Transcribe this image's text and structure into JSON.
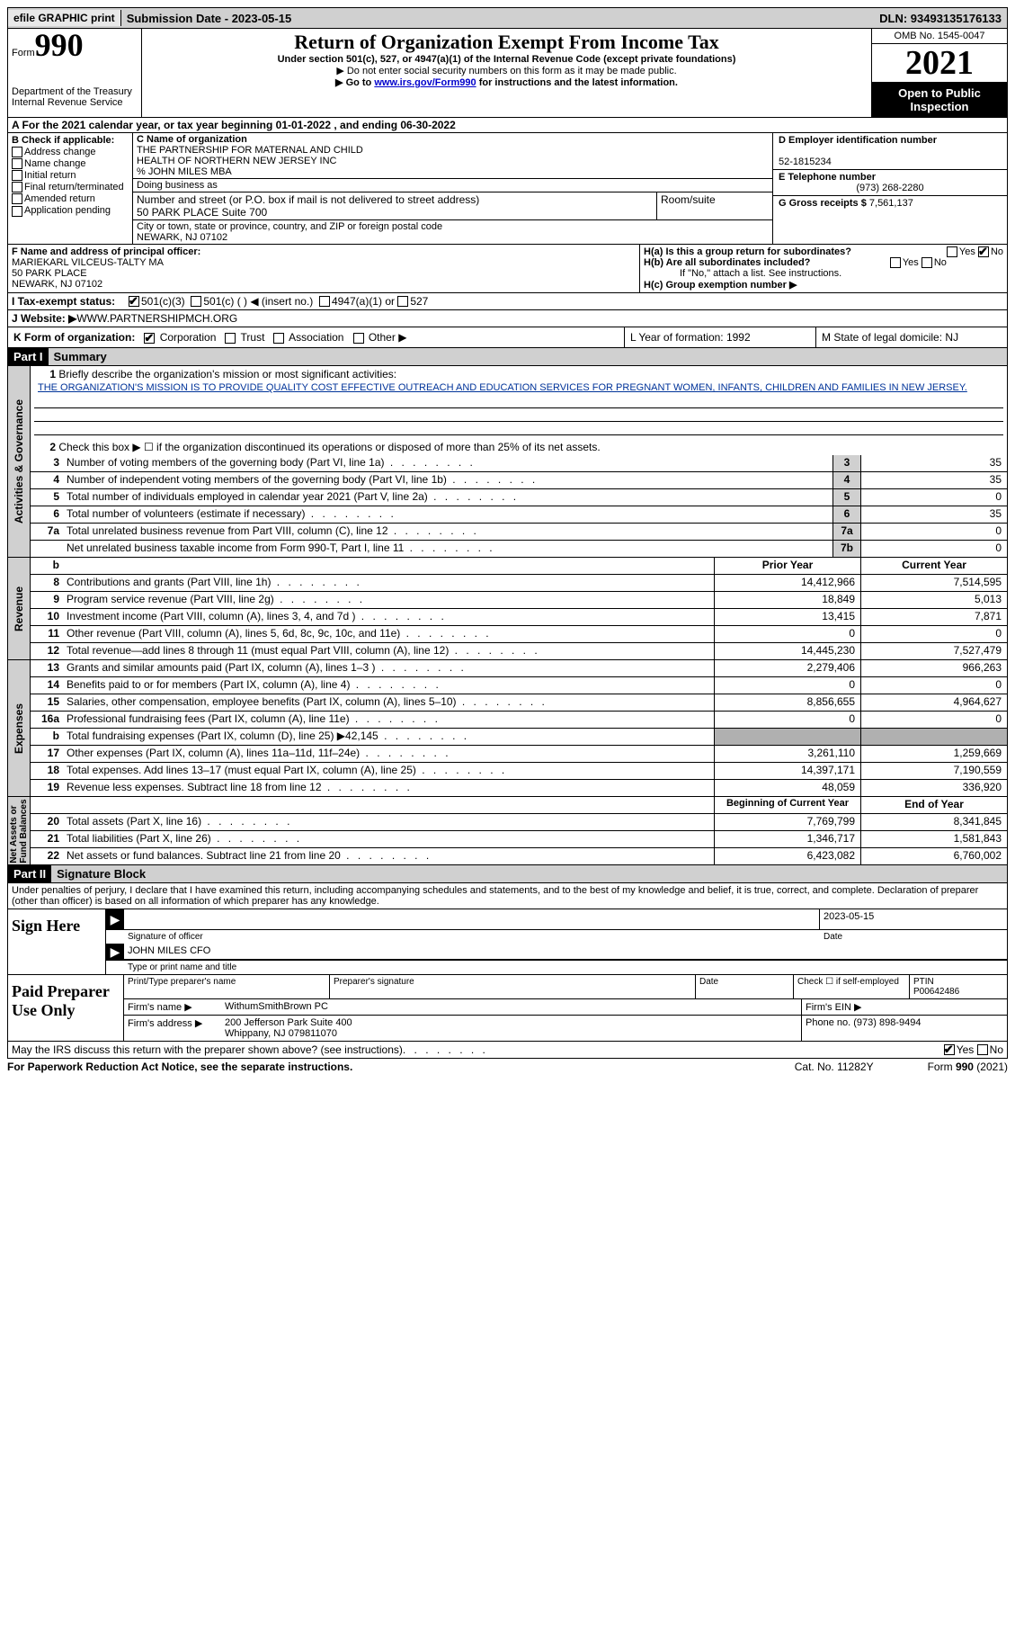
{
  "topbar": {
    "efile": "efile GRAPHIC print",
    "sub_date": "Submission Date - 2023-05-15",
    "dln": "DLN: 93493135176133"
  },
  "header": {
    "form_label": "Form",
    "form_num": "990",
    "dept": "Department of the Treasury",
    "irs": "Internal Revenue Service",
    "title": "Return of Organization Exempt From Income Tax",
    "sub1": "Under section 501(c), 527, or 4947(a)(1) of the Internal Revenue Code (except private foundations)",
    "sub2": "▶ Do not enter social security numbers on this form as it may be made public.",
    "sub3_pre": "▶ Go to ",
    "sub3_link": "www.irs.gov/Form990",
    "sub3_post": " for instructions and the latest information.",
    "omb": "OMB No. 1545-0047",
    "year": "2021",
    "open": "Open to Public Inspection"
  },
  "a": "A For the 2021 calendar year, or tax year beginning 01-01-2022    , and ending 06-30-2022",
  "b": {
    "hdr": "B Check if applicable:",
    "items": [
      "Address change",
      "Name change",
      "Initial return",
      "Final return/terminated",
      "Amended return",
      "Application pending"
    ]
  },
  "c": {
    "label": "C Name of organization",
    "name1": "THE PARTNERSHIP FOR MATERNAL AND CHILD",
    "name2": "HEALTH OF NORTHERN NEW JERSEY INC",
    "care": "% JOHN MILES MBA",
    "dba_label": "Doing business as",
    "addr_label": "Number and street (or P.O. box if mail is not delivered to street address)",
    "room_label": "Room/suite",
    "addr": "50 PARK PLACE Suite 700",
    "city_label": "City or town, state or province, country, and ZIP or foreign postal code",
    "city": "NEWARK, NJ  07102"
  },
  "d": {
    "ein_label": "D Employer identification number",
    "ein": "52-1815234",
    "tel_label": "E Telephone number",
    "tel": "(973) 268-2280",
    "gross_label": "G Gross receipts $",
    "gross": "7,561,137"
  },
  "f": {
    "label": "F  Name and address of principal officer:",
    "name": "MARIEKARL VILCEUS-TALTY MA",
    "addr1": "50 PARK PLACE",
    "addr2": "NEWARK, NJ  07102"
  },
  "h": {
    "a": "H(a)  Is this a group return for subordinates?",
    "b": "H(b)  Are all subordinates included?",
    "b_note": "If \"No,\" attach a list. See instructions.",
    "c": "H(c)  Group exemption number ▶"
  },
  "i": {
    "label": "I    Tax-exempt status:",
    "opts": [
      "501(c)(3)",
      "501(c) (  ) ◀ (insert no.)",
      "4947(a)(1) or",
      "527"
    ]
  },
  "j": {
    "label": "J   Website: ▶",
    "val": "  WWW.PARTNERSHIPMCH.ORG"
  },
  "k": {
    "label": "K Form of organization:",
    "opts": [
      "Corporation",
      "Trust",
      "Association",
      "Other ▶"
    ],
    "l": "L Year of formation: 1992",
    "m": "M State of legal domicile: NJ"
  },
  "part1": {
    "hdr": "Part I",
    "title": "Summary",
    "line1_label": "Briefly describe the organization's mission or most significant activities:",
    "mission": "THE ORGANIZATION'S MISSION IS TO PROVIDE QUALITY COST EFFECTIVE OUTREACH AND EDUCATION SERVICES FOR PREGNANT WOMEN, INFANTS, CHILDREN AND FAMILIES IN NEW JERSEY.",
    "line2": "Check this box ▶ ☐  if the organization discontinued its operations or disposed of more than 25% of its net assets.",
    "rows_gov": [
      {
        "n": "3",
        "label": "Number of voting members of the governing body (Part VI, line 1a)",
        "box": "3",
        "val": "35"
      },
      {
        "n": "4",
        "label": "Number of independent voting members of the governing body (Part VI, line 1b)",
        "box": "4",
        "val": "35"
      },
      {
        "n": "5",
        "label": "Total number of individuals employed in calendar year 2021 (Part V, line 2a)",
        "box": "5",
        "val": "0"
      },
      {
        "n": "6",
        "label": "Total number of volunteers (estimate if necessary)",
        "box": "6",
        "val": "35"
      },
      {
        "n": "7a",
        "label": "Total unrelated business revenue from Part VIII, column (C), line 12",
        "box": "7a",
        "val": "0"
      },
      {
        "n": "",
        "label": "Net unrelated business taxable income from Form 990-T, Part I, line 11",
        "box": "7b",
        "val": "0"
      }
    ],
    "col_hdrs": {
      "prior": "Prior Year",
      "current": "Current Year"
    },
    "rows_rev": [
      {
        "n": "8",
        "label": "Contributions and grants (Part VIII, line 1h)",
        "p": "14,412,966",
        "c": "7,514,595"
      },
      {
        "n": "9",
        "label": "Program service revenue (Part VIII, line 2g)",
        "p": "18,849",
        "c": "5,013"
      },
      {
        "n": "10",
        "label": "Investment income (Part VIII, column (A), lines 3, 4, and 7d )",
        "p": "13,415",
        "c": "7,871"
      },
      {
        "n": "11",
        "label": "Other revenue (Part VIII, column (A), lines 5, 6d, 8c, 9c, 10c, and 11e)",
        "p": "0",
        "c": "0"
      },
      {
        "n": "12",
        "label": "Total revenue—add lines 8 through 11 (must equal Part VIII, column (A), line 12)",
        "p": "14,445,230",
        "c": "7,527,479"
      }
    ],
    "rows_exp": [
      {
        "n": "13",
        "label": "Grants and similar amounts paid (Part IX, column (A), lines 1–3 )",
        "p": "2,279,406",
        "c": "966,263"
      },
      {
        "n": "14",
        "label": "Benefits paid to or for members (Part IX, column (A), line 4)",
        "p": "0",
        "c": "0"
      },
      {
        "n": "15",
        "label": "Salaries, other compensation, employee benefits (Part IX, column (A), lines 5–10)",
        "p": "8,856,655",
        "c": "4,964,627"
      },
      {
        "n": "16a",
        "label": "Professional fundraising fees (Part IX, column (A), line 11e)",
        "p": "0",
        "c": "0"
      },
      {
        "n": "b",
        "label": "Total fundraising expenses (Part IX, column (D), line 25) ▶42,145",
        "p": "",
        "c": "",
        "shade": true
      },
      {
        "n": "17",
        "label": "Other expenses (Part IX, column (A), lines 11a–11d, 11f–24e)",
        "p": "3,261,110",
        "c": "1,259,669"
      },
      {
        "n": "18",
        "label": "Total expenses. Add lines 13–17 (must equal Part IX, column (A), line 25)",
        "p": "14,397,171",
        "c": "7,190,559"
      },
      {
        "n": "19",
        "label": "Revenue less expenses. Subtract line 18 from line 12",
        "p": "48,059",
        "c": "336,920"
      }
    ],
    "col_hdrs2": {
      "beg": "Beginning of Current Year",
      "end": "End of Year"
    },
    "rows_net": [
      {
        "n": "20",
        "label": "Total assets (Part X, line 16)",
        "p": "7,769,799",
        "c": "8,341,845"
      },
      {
        "n": "21",
        "label": "Total liabilities (Part X, line 26)",
        "p": "1,346,717",
        "c": "1,581,843"
      },
      {
        "n": "22",
        "label": "Net assets or fund balances. Subtract line 21 from line 20",
        "p": "6,423,082",
        "c": "6,760,002"
      }
    ]
  },
  "part2": {
    "hdr": "Part II",
    "title": "Signature Block",
    "decl": "Under penalties of perjury, I declare that I have examined this return, including accompanying schedules and statements, and to the best of my knowledge and belief, it is true, correct, and complete. Declaration of preparer (other than officer) is based on all information of which preparer has any knowledge.",
    "sign_here": "Sign Here",
    "sig_officer": "Signature of officer",
    "sig_date": "2023-05-15",
    "date_label": "Date",
    "officer_name": "JOHN MILES CFO",
    "type_label": "Type or print name and title",
    "paid": "Paid Preparer Use Only",
    "prep_name_label": "Print/Type preparer's name",
    "prep_sig_label": "Preparer's signature",
    "check_self": "Check ☐ if self-employed",
    "ptin_label": "PTIN",
    "ptin": "P00642486",
    "firm_name_label": "Firm's name    ▶",
    "firm_name": "WithumSmithBrown PC",
    "firm_ein_label": "Firm's EIN ▶",
    "firm_addr_label": "Firm's address ▶",
    "firm_addr1": "200 Jefferson Park Suite 400",
    "firm_addr2": "Whippany, NJ  079811070",
    "phone_label": "Phone no.",
    "phone": "(973) 898-9494"
  },
  "footer": {
    "discuss": "May the IRS discuss this return with the preparer shown above? (see instructions)",
    "paperwork": "For Paperwork Reduction Act Notice, see the separate instructions.",
    "cat": "Cat. No. 11282Y",
    "form": "Form 990 (2021)"
  },
  "yesno": {
    "yes": "Yes",
    "no": "No"
  }
}
